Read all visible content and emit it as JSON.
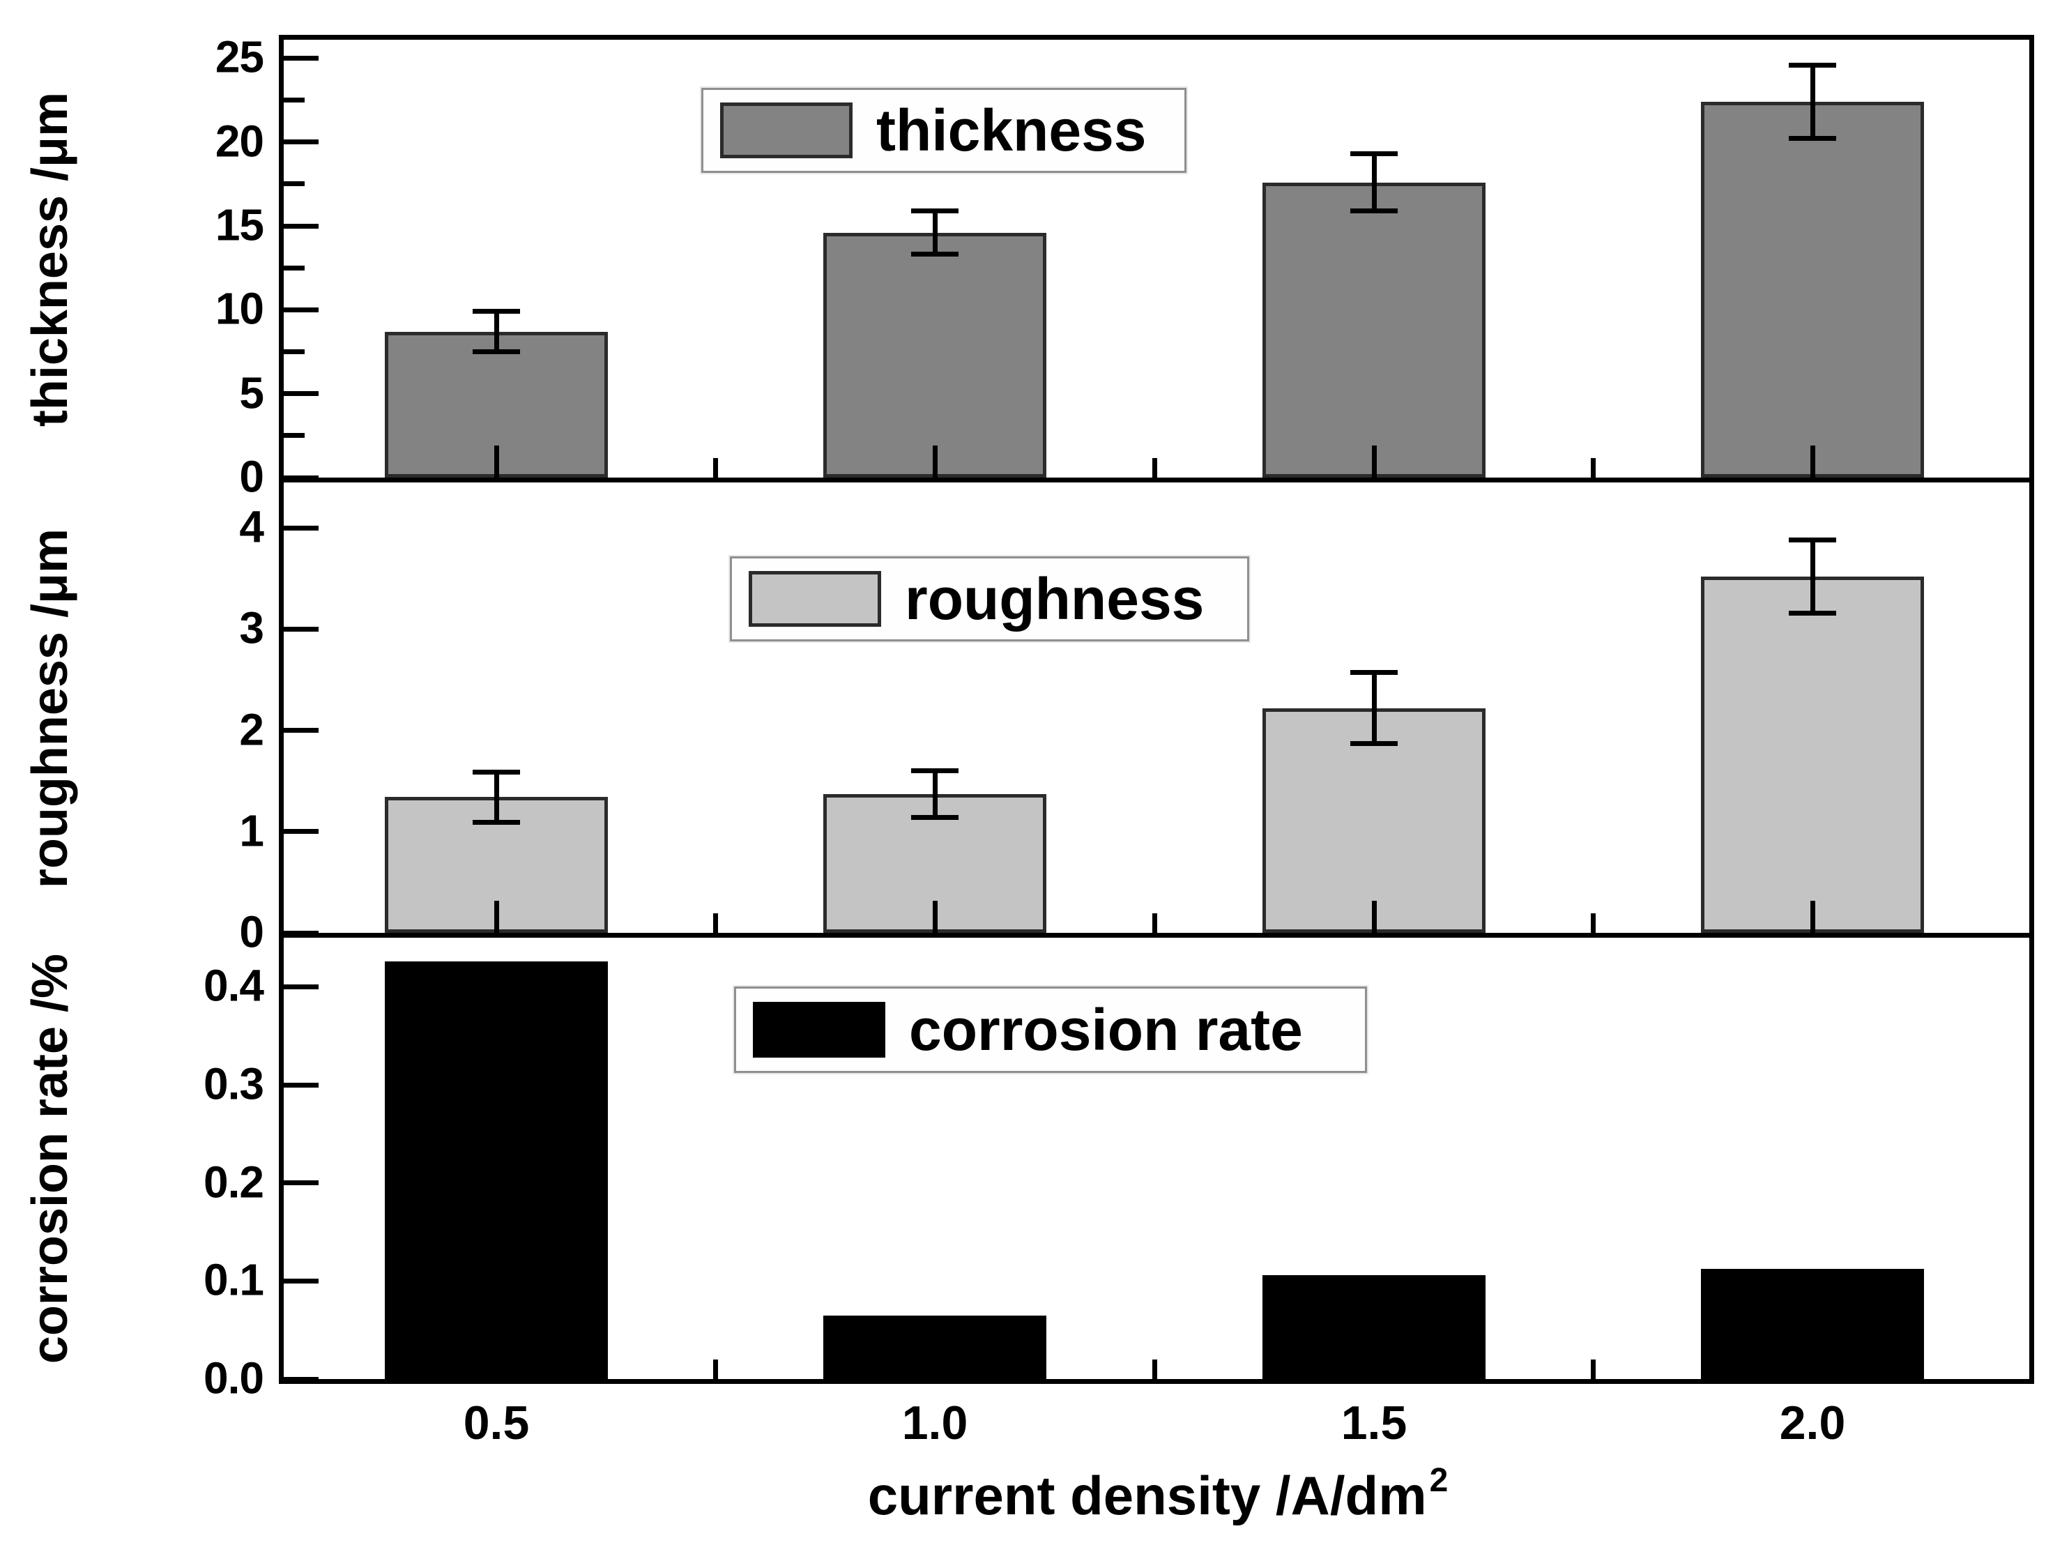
{
  "figure": {
    "background": "#ffffff"
  },
  "chart_data": {
    "type": "bar",
    "title": "",
    "subtitle": "",
    "layout_hint": "three vertically stacked panels sharing one x-axis, ticks inward, no grid, legend inside top-center of each panel",
    "grid": false,
    "x": {
      "label": "current density /A/dm²",
      "label_base": "current density /A/dm",
      "label_sup": "2",
      "categories": [
        "0.5",
        "1.0",
        "1.5",
        "2.0"
      ],
      "values": [
        0.5,
        1.0,
        1.5,
        2.0
      ],
      "range": [
        0.25,
        2.25
      ],
      "minor_tick_values": [
        0.75,
        1.25,
        1.75
      ]
    },
    "panels": [
      {
        "id": "thickness",
        "ylabel": "thickness /μm",
        "legend_label": "thickness",
        "bar_color": "#838383",
        "bar_edge_color": "#2b2b2b",
        "values": [
          8.7,
          14.6,
          17.6,
          22.4
        ],
        "errors": [
          1.2,
          1.3,
          1.7,
          2.2
        ],
        "ytick_labels": [
          "0",
          "5",
          "10",
          "15",
          "20",
          "25"
        ],
        "ytick_values": [
          0,
          5,
          10,
          15,
          20,
          25
        ],
        "y_minor_values": [
          2.5,
          7.5,
          12.5,
          17.5,
          22.5
        ],
        "ylim": [
          0,
          26.1
        ]
      },
      {
        "id": "roughness",
        "ylabel": "roughness /μm",
        "legend_label": "roughness",
        "bar_color": "#c4c4c4",
        "bar_edge_color": "#2b2b2b",
        "values": [
          1.34,
          1.37,
          2.22,
          3.52
        ],
        "errors": [
          0.25,
          0.23,
          0.35,
          0.36
        ],
        "ytick_labels": [
          "0",
          "1",
          "2",
          "3",
          "4"
        ],
        "ytick_values": [
          0,
          1,
          2,
          3,
          4
        ],
        "y_minor_values": [],
        "ylim": [
          0,
          4.45
        ]
      },
      {
        "id": "corrosion-rate",
        "ylabel": "corrosion rate /%",
        "legend_label": "corrosion rate",
        "bar_color": "#000000",
        "bar_edge_color": "#000000",
        "values": [
          0.426,
          0.065,
          0.106,
          0.112
        ],
        "errors": [
          0,
          0,
          0,
          0
        ],
        "ytick_labels": [
          "0.0",
          "0.1",
          "0.2",
          "0.3",
          "0.4"
        ],
        "ytick_values": [
          0,
          0.1,
          0.2,
          0.3,
          0.4
        ],
        "y_minor_values": [],
        "ylim": [
          0,
          0.45
        ]
      }
    ],
    "error_bars": true
  }
}
